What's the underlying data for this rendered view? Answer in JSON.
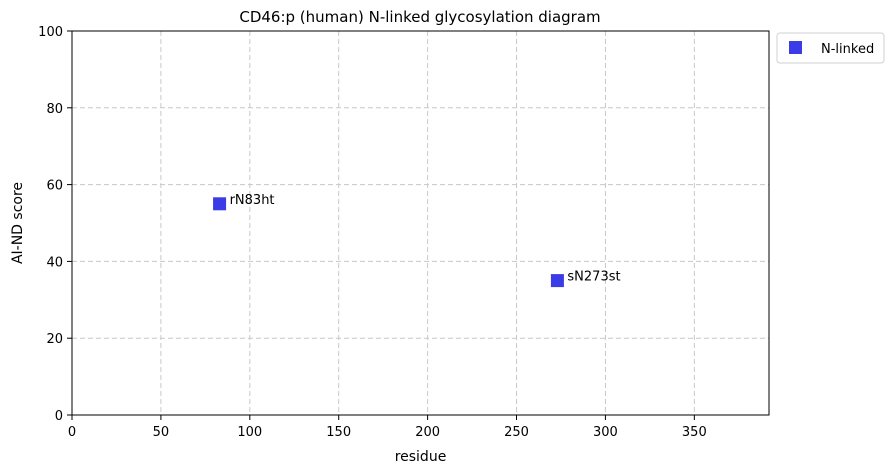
{
  "chart_data": {
    "type": "scatter",
    "title": "CD46:p (human) N-linked glycosylation diagram",
    "xlabel": "residue",
    "ylabel": "AI-ND score",
    "xlim": [
      0,
      392
    ],
    "ylim": [
      0,
      100
    ],
    "xticks": [
      0,
      50,
      100,
      150,
      200,
      250,
      300,
      350
    ],
    "yticks": [
      0,
      20,
      40,
      60,
      80,
      100
    ],
    "grid": true,
    "legend_position": "outside-top-right",
    "series": [
      {
        "name": "N-linked",
        "color": "#3c3ce6",
        "marker": "square",
        "points": [
          {
            "x": 83,
            "y": 55,
            "label": "rN83ht"
          },
          {
            "x": 273,
            "y": 35,
            "label": "sN273st"
          }
        ]
      }
    ]
  }
}
